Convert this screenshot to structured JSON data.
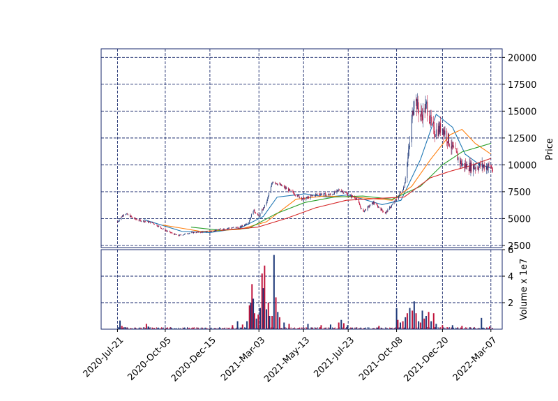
{
  "chart_data": [
    {
      "type": "candlestick",
      "panel": "price",
      "xlabel": "",
      "ylabel": "Price",
      "ylim": [
        2300,
        20800
      ],
      "y_ticks": [
        2500,
        5000,
        7500,
        10000,
        12500,
        15000,
        17500,
        20000
      ],
      "x_ticks": [
        "2020-Jul-21",
        "2020-Oct-05",
        "2020-Dec-15",
        "2021-Mar-03",
        "2021-May-13",
        "2021-Jul-23",
        "2021-Oct-08",
        "2021-Dec-20",
        "2022-Mar-07"
      ],
      "x_range": [
        "2020-06-25",
        "2022-03-25"
      ],
      "grid": true,
      "colors": {
        "up": "#1f3a7a",
        "down": "#c0143c",
        "frame": "#1a2a6c",
        "grid": "#1a2a6c"
      },
      "price_keypoints": [
        [
          "2020-07-21",
          4700
        ],
        [
          "2020-08-01",
          5500
        ],
        [
          "2020-08-20",
          4900
        ],
        [
          "2020-09-15",
          4600
        ],
        [
          "2020-10-05",
          3900
        ],
        [
          "2020-10-25",
          3400
        ],
        [
          "2020-11-15",
          3700
        ],
        [
          "2020-12-15",
          3800
        ],
        [
          "2021-01-10",
          4100
        ],
        [
          "2021-02-01",
          4200
        ],
        [
          "2021-02-15",
          4700
        ],
        [
          "2021-02-22",
          5800
        ],
        [
          "2021-03-03",
          5200
        ],
        [
          "2021-03-15",
          6500
        ],
        [
          "2021-03-25",
          8500
        ],
        [
          "2021-04-15",
          7800
        ],
        [
          "2021-05-13",
          6800
        ],
        [
          "2021-06-05",
          7300
        ],
        [
          "2021-06-25",
          7200
        ],
        [
          "2021-07-10",
          7700
        ],
        [
          "2021-07-23",
          7200
        ],
        [
          "2021-08-05",
          6900
        ],
        [
          "2021-08-15",
          5600
        ],
        [
          "2021-09-01",
          6500
        ],
        [
          "2021-09-20",
          5500
        ],
        [
          "2021-10-08",
          6800
        ],
        [
          "2021-10-20",
          8000
        ],
        [
          "2021-10-28",
          11500
        ],
        [
          "2021-11-05",
          16500
        ],
        [
          "2021-11-15",
          14500
        ],
        [
          "2021-11-25",
          15500
        ],
        [
          "2021-12-05",
          13000
        ],
        [
          "2021-12-20",
          13500
        ],
        [
          "2022-01-05",
          11500
        ],
        [
          "2022-01-20",
          10000
        ],
        [
          "2022-02-05",
          9800
        ],
        [
          "2022-02-20",
          9900
        ],
        [
          "2022-03-07",
          9800
        ],
        [
          "2022-03-10",
          9500
        ]
      ],
      "moving_averages": [
        {
          "color": "#1f77b4",
          "points": [
            [
              "2020-09-01",
              4900
            ],
            [
              "2020-11-01",
              3800
            ],
            [
              "2020-12-15",
              3700
            ],
            [
              "2021-02-01",
              4100
            ],
            [
              "2021-03-10",
              5200
            ],
            [
              "2021-04-01",
              7000
            ],
            [
              "2021-05-15",
              7300
            ],
            [
              "2021-06-20",
              7000
            ],
            [
              "2021-07-23",
              7200
            ],
            [
              "2021-09-15",
              6300
            ],
            [
              "2021-10-15",
              6700
            ],
            [
              "2021-11-15",
              10500
            ],
            [
              "2021-12-10",
              14700
            ],
            [
              "2022-01-05",
              13500
            ],
            [
              "2022-01-25",
              11000
            ],
            [
              "2022-02-15",
              10100
            ],
            [
              "2022-03-07",
              9700
            ]
          ]
        },
        {
          "color": "#ff7f0e",
          "points": [
            [
              "2020-10-01",
              4400
            ],
            [
              "2020-12-01",
              3800
            ],
            [
              "2021-02-01",
              4000
            ],
            [
              "2021-03-15",
              4700
            ],
            [
              "2021-05-01",
              6800
            ],
            [
              "2021-06-15",
              7100
            ],
            [
              "2021-08-01",
              7000
            ],
            [
              "2021-10-01",
              6700
            ],
            [
              "2021-11-01",
              8000
            ],
            [
              "2021-12-01",
              10500
            ],
            [
              "2022-01-01",
              12800
            ],
            [
              "2022-01-20",
              13300
            ],
            [
              "2022-02-10",
              12000
            ],
            [
              "2022-03-07",
              11000
            ]
          ]
        },
        {
          "color": "#2ca02c",
          "points": [
            [
              "2020-11-15",
              4200
            ],
            [
              "2021-01-01",
              3900
            ],
            [
              "2021-02-15",
              4100
            ],
            [
              "2021-04-01",
              5500
            ],
            [
              "2021-05-15",
              6500
            ],
            [
              "2021-07-01",
              7000
            ],
            [
              "2021-08-15",
              7100
            ],
            [
              "2021-10-01",
              6800
            ],
            [
              "2021-11-15",
              8000
            ],
            [
              "2021-12-20",
              10000
            ],
            [
              "2022-01-20",
              11200
            ],
            [
              "2022-03-07",
              12000
            ]
          ]
        },
        {
          "color": "#d62728",
          "points": [
            [
              "2021-01-01",
              3900
            ],
            [
              "2021-03-01",
              4200
            ],
            [
              "2021-04-15",
              5000
            ],
            [
              "2021-06-01",
              6000
            ],
            [
              "2021-07-20",
              6700
            ],
            [
              "2021-09-15",
              6900
            ],
            [
              "2021-10-20",
              7000
            ],
            [
              "2021-12-01",
              8800
            ],
            [
              "2022-01-01",
              9400
            ],
            [
              "2022-02-01",
              9900
            ],
            [
              "2022-03-07",
              10600
            ]
          ]
        }
      ]
    },
    {
      "type": "bar",
      "panel": "volume",
      "xlabel": "",
      "ylabel": "Volume x 1e7",
      "ylim": [
        0,
        6
      ],
      "y_ticks": [
        2,
        4,
        6
      ],
      "grid": true,
      "volume_bars": [
        [
          "2020-07-25",
          0.65
        ],
        [
          "2020-07-28",
          0.25
        ],
        [
          "2020-08-02",
          0.15
        ],
        [
          "2020-09-05",
          0.4
        ],
        [
          "2020-09-08",
          0.2
        ],
        [
          "2021-01-20",
          0.3
        ],
        [
          "2021-01-28",
          0.6
        ],
        [
          "2021-02-05",
          0.35
        ],
        [
          "2021-02-12",
          0.6
        ],
        [
          "2021-02-16",
          1.8
        ],
        [
          "2021-02-18",
          2.0
        ],
        [
          "2021-02-20",
          3.4
        ],
        [
          "2021-02-22",
          2.3
        ],
        [
          "2021-02-24",
          1.2
        ],
        [
          "2021-02-27",
          0.8
        ],
        [
          "2021-03-02",
          1.1
        ],
        [
          "2021-03-05",
          1.6
        ],
        [
          "2021-03-08",
          4.2
        ],
        [
          "2021-03-10",
          3.1
        ],
        [
          "2021-03-12",
          4.8
        ],
        [
          "2021-03-15",
          1.5
        ],
        [
          "2021-03-18",
          2.0
        ],
        [
          "2021-03-20",
          1.0
        ],
        [
          "2021-03-24",
          1.0
        ],
        [
          "2021-03-27",
          5.6
        ],
        [
          "2021-03-30",
          2.4
        ],
        [
          "2021-04-02",
          1.3
        ],
        [
          "2021-04-05",
          0.9
        ],
        [
          "2021-04-12",
          0.5
        ],
        [
          "2021-04-20",
          0.4
        ],
        [
          "2021-05-20",
          0.4
        ],
        [
          "2021-06-10",
          0.3
        ],
        [
          "2021-06-25",
          0.35
        ],
        [
          "2021-07-08",
          0.5
        ],
        [
          "2021-07-12",
          0.7
        ],
        [
          "2021-07-16",
          0.45
        ],
        [
          "2021-07-22",
          0.3
        ],
        [
          "2021-09-10",
          0.25
        ],
        [
          "2021-10-08",
          1.6
        ],
        [
          "2021-10-10",
          0.7
        ],
        [
          "2021-10-14",
          0.5
        ],
        [
          "2021-10-18",
          0.6
        ],
        [
          "2021-10-22",
          0.9
        ],
        [
          "2021-10-25",
          1.2
        ],
        [
          "2021-10-29",
          1.6
        ],
        [
          "2021-11-02",
          1.4
        ],
        [
          "2021-11-05",
          2.1
        ],
        [
          "2021-11-08",
          1.2
        ],
        [
          "2021-11-12",
          0.6
        ],
        [
          "2021-11-15",
          0.5
        ],
        [
          "2021-11-18",
          1.4
        ],
        [
          "2021-11-21",
          0.8
        ],
        [
          "2021-11-24",
          1.0
        ],
        [
          "2021-11-28",
          1.3
        ],
        [
          "2021-12-02",
          0.6
        ],
        [
          "2021-12-06",
          1.2
        ],
        [
          "2021-12-10",
          0.4
        ],
        [
          "2021-12-20",
          0.3
        ],
        [
          "2022-01-05",
          0.3
        ],
        [
          "2022-01-20",
          0.25
        ],
        [
          "2022-02-20",
          0.85
        ],
        [
          "2022-03-05",
          0.2
        ]
      ]
    }
  ]
}
